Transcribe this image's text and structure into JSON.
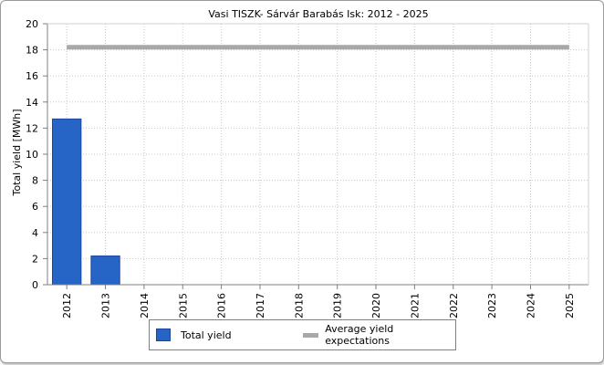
{
  "chart_data": {
    "type": "bar",
    "title": "Vasi TISZK- Sárvár Barabás Isk: 2012 - 2025",
    "xlabel": "",
    "ylabel": "Total yield [MWh]",
    "ylim": [
      0,
      20
    ],
    "yticks": [
      "0",
      "2",
      "4",
      "6",
      "8",
      "10",
      "12",
      "14",
      "16",
      "18",
      "20"
    ],
    "categories": [
      "2012",
      "2013",
      "2014",
      "2015",
      "2016",
      "2017",
      "2018",
      "2019",
      "2020",
      "2021",
      "2022",
      "2023",
      "2024",
      "2025"
    ],
    "series": [
      {
        "name": "Total yield",
        "type": "bar",
        "color": "#2664c6",
        "values": [
          12.7,
          2.2,
          0,
          0,
          0,
          0,
          0,
          0,
          0,
          0,
          0,
          0,
          0,
          0
        ]
      },
      {
        "name": "Average yield expectations",
        "type": "line",
        "color": "#a8a8a8",
        "values": [
          18.2,
          18.2,
          18.2,
          18.2,
          18.2,
          18.2,
          18.2,
          18.2,
          18.2,
          18.2,
          18.2,
          18.2,
          18.2,
          18.2
        ]
      }
    ],
    "grid": true,
    "legend": "bottom"
  }
}
